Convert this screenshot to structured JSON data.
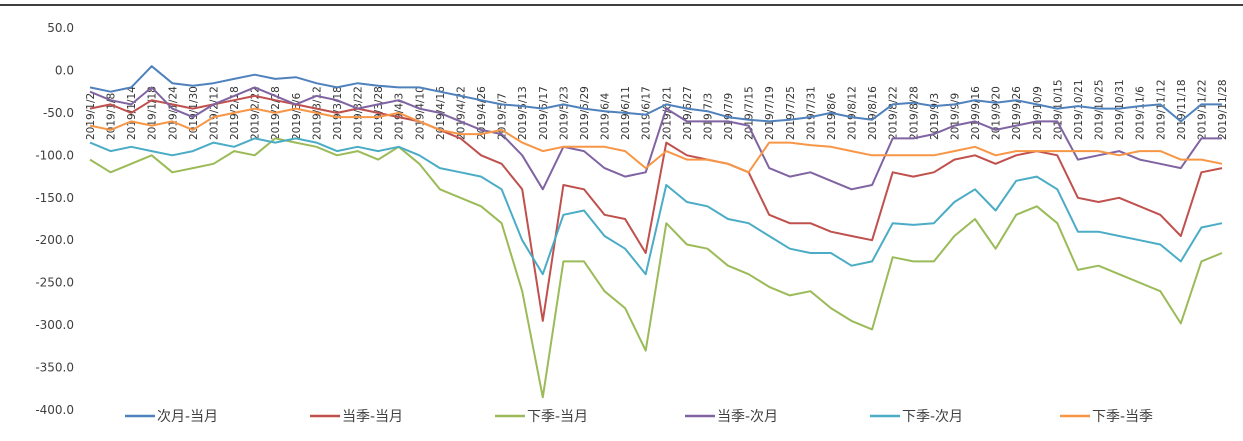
{
  "chart_data": {
    "type": "line",
    "categories": [
      "2019/1/2",
      "2019/1/8",
      "2019/1/14",
      "2019/1/18",
      "2019/1/24",
      "2019/1/30",
      "2019/2/12",
      "2019/2/18",
      "2019/2/22",
      "2019/2/28",
      "2019/3/6",
      "2019/3/12",
      "2019/3/18",
      "2019/3/22",
      "2019/3/28",
      "2019/4/3",
      "2019/4/10",
      "2019/4/16",
      "2019/4/22",
      "2019/4/26",
      "2019/5/7",
      "2019/5/13",
      "2019/5/17",
      "2019/5/23",
      "2019/5/29",
      "2019/6/4",
      "2019/6/11",
      "2019/6/17",
      "2019/6/21",
      "2019/6/27",
      "2019/7/3",
      "2019/7/9",
      "2019/7/15",
      "2019/7/19",
      "2019/7/25",
      "2019/7/31",
      "2019/8/6",
      "2019/8/12",
      "2019/8/16",
      "2019/8/22",
      "2019/8/28",
      "2019/9/3",
      "2019/9/9",
      "2019/9/16",
      "2019/9/20",
      "2019/9/26",
      "2019/10/9",
      "2019/10/15",
      "2019/10/21",
      "2019/10/25",
      "2019/10/31",
      "2019/11/6",
      "2019/11/12",
      "2019/11/18",
      "2019/11/22",
      "2019/11/28"
    ],
    "series": [
      {
        "name": "次月-当月",
        "color": "#4f81bd",
        "values": [
          -20,
          -25,
          -20,
          5,
          -15,
          -18,
          -15,
          -10,
          -5,
          -10,
          -8,
          -15,
          -20,
          -15,
          -18,
          -20,
          -20,
          -25,
          -30,
          -35,
          -40,
          -42,
          -45,
          -40,
          -45,
          -48,
          -50,
          -52,
          -40,
          -45,
          -48,
          -55,
          -58,
          -60,
          -58,
          -55,
          -50,
          -55,
          -58,
          -40,
          -38,
          -42,
          -40,
          -35,
          -38,
          -35,
          -40,
          -45,
          -42,
          -45,
          -45,
          -42,
          -40,
          -60,
          -40,
          -40
        ]
      },
      {
        "name": "当季-当月",
        "color": "#c0504d",
        "values": [
          -45,
          -40,
          -50,
          -35,
          -40,
          -45,
          -40,
          -35,
          -30,
          -35,
          -40,
          -45,
          -50,
          -45,
          -50,
          -55,
          -60,
          -70,
          -80,
          -100,
          -110,
          -140,
          -295,
          -135,
          -140,
          -170,
          -175,
          -215,
          -85,
          -100,
          -105,
          -110,
          -120,
          -170,
          -180,
          -180,
          -190,
          -195,
          -200,
          -120,
          -125,
          -120,
          -105,
          -100,
          -110,
          -100,
          -95,
          -100,
          -150,
          -155,
          -150,
          -160,
          -170,
          -195,
          -120,
          -115
        ]
      },
      {
        "name": "下季-当月",
        "color": "#9bbb59",
        "values": [
          -105,
          -120,
          -110,
          -100,
          -120,
          -115,
          -110,
          -95,
          -100,
          -80,
          -85,
          -90,
          -100,
          -95,
          -105,
          -90,
          -110,
          -140,
          -150,
          -160,
          -180,
          -260,
          -385,
          -225,
          -225,
          -260,
          -280,
          -330,
          -180,
          -205,
          -210,
          -230,
          -240,
          -255,
          -265,
          -260,
          -280,
          -295,
          -305,
          -220,
          -225,
          -225,
          -195,
          -175,
          -210,
          -170,
          -160,
          -180,
          -235,
          -230,
          -240,
          -250,
          -260,
          -298,
          -225,
          -215
        ]
      },
      {
        "name": "当季-次月",
        "color": "#8064a2",
        "values": [
          -25,
          -35,
          -40,
          -20,
          -45,
          -55,
          -40,
          -30,
          -20,
          -30,
          -40,
          -30,
          -35,
          -45,
          -40,
          -35,
          -45,
          -50,
          -60,
          -70,
          -75,
          -100,
          -140,
          -90,
          -95,
          -115,
          -125,
          -120,
          -45,
          -60,
          -60,
          -60,
          -65,
          -115,
          -125,
          -120,
          -130,
          -140,
          -135,
          -80,
          -80,
          -75,
          -65,
          -60,
          -70,
          -65,
          -60,
          -60,
          -105,
          -100,
          -95,
          -105,
          -110,
          -115,
          -80,
          -80
        ]
      },
      {
        "name": "下季-次月",
        "color": "#4bacc6",
        "values": [
          -85,
          -95,
          -90,
          -95,
          -100,
          -95,
          -85,
          -90,
          -80,
          -85,
          -80,
          -85,
          -95,
          -90,
          -95,
          -90,
          -100,
          -115,
          -120,
          -125,
          -140,
          -200,
          -240,
          -170,
          -165,
          -195,
          -210,
          -240,
          -135,
          -155,
          -160,
          -175,
          -180,
          -195,
          -210,
          -215,
          -215,
          -230,
          -225,
          -180,
          -182,
          -180,
          -155,
          -140,
          -165,
          -130,
          -125,
          -140,
          -190,
          -190,
          -195,
          -200,
          -205,
          -225,
          -185,
          -180
        ]
      },
      {
        "name": "下季-当季",
        "color": "#f79646",
        "values": [
          -65,
          -70,
          -60,
          -65,
          -60,
          -70,
          -55,
          -50,
          -45,
          -50,
          -45,
          -50,
          -55,
          -55,
          -55,
          -50,
          -60,
          -70,
          -75,
          -75,
          -70,
          -85,
          -95,
          -90,
          -90,
          -90,
          -95,
          -115,
          -95,
          -105,
          -105,
          -110,
          -120,
          -85,
          -85,
          -88,
          -90,
          -95,
          -100,
          -100,
          -100,
          -100,
          -95,
          -90,
          -100,
          -95,
          -95,
          -95,
          -95,
          -95,
          -100,
          -95,
          -95,
          -105,
          -105,
          -110
        ]
      }
    ],
    "ylim": [
      -400,
      50
    ],
    "yticks": [
      {
        "value": -400,
        "label": "-400.0"
      },
      {
        "value": -350,
        "label": "-350.0"
      },
      {
        "value": -300,
        "label": "-300.0"
      },
      {
        "value": -250,
        "label": "-250.0"
      },
      {
        "value": -200,
        "label": "-200.0"
      },
      {
        "value": -150,
        "label": "-150.0"
      },
      {
        "value": -100,
        "label": "-100.0"
      },
      {
        "value": -50,
        "label": "-50.0"
      },
      {
        "value": 0,
        "label": "0.0"
      },
      {
        "value": 50,
        "label": "50.0"
      }
    ],
    "grid": false,
    "legend": "bottom"
  }
}
